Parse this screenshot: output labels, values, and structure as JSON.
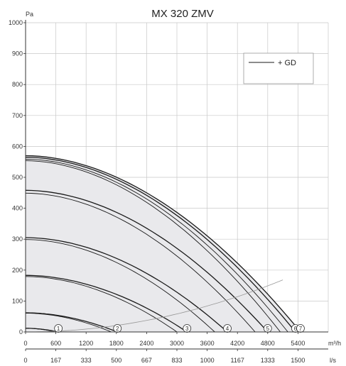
{
  "chart_data": {
    "type": "line",
    "title": "MX 320 ZMV",
    "ylabel": "Pa",
    "x_unit_primary": "m³/h",
    "x_unit_secondary": "l/s",
    "ylim": [
      0,
      1000
    ],
    "xlim": [
      0,
      6000
    ],
    "y_ticks": [
      "0",
      "100",
      "200",
      "300",
      "400",
      "500",
      "600",
      "700",
      "800",
      "900",
      "1000"
    ],
    "x_ticks": [
      "0",
      "600",
      "1200",
      "1800",
      "2400",
      "3000",
      "3600",
      "4200",
      "4800",
      "5400"
    ],
    "x_ticks_secondary": [
      "0",
      "167",
      "333",
      "500",
      "667",
      "833",
      "1000",
      "1167",
      "1333",
      "1500"
    ],
    "grid": true,
    "legend": {
      "entries": [
        "+ GD"
      ],
      "placement": "top-right"
    },
    "series": [
      {
        "label": "1",
        "pressure_at_zero": 12,
        "flow_at_zero": 650,
        "gd_flow_at_zero": 600
      },
      {
        "label": "2",
        "pressure_at_zero": 62,
        "flow_at_zero": 1820,
        "gd_flow_at_zero": 1700
      },
      {
        "label": "3",
        "pressure_at_zero": 183,
        "flow_at_zero": 3200,
        "gd_flow_at_zero": 3000
      },
      {
        "label": "4",
        "pressure_at_zero": 305,
        "flow_at_zero": 4000,
        "gd_flow_at_zero": 3750
      },
      {
        "label": "5",
        "pressure_at_zero": 458,
        "flow_at_zero": 4800,
        "gd_flow_at_zero": 4550
      },
      {
        "label": "6",
        "pressure_at_zero": 565,
        "flow_at_zero": 5350,
        "gd_flow_at_zero": 5050
      },
      {
        "label": "7",
        "pressure_at_zero": 570,
        "flow_at_zero": 5450,
        "gd_flow_at_zero": 5200
      }
    ],
    "system_curve": {
      "k": 6.47e-06,
      "x_max": 5100
    }
  },
  "colors": {
    "background": "#ffffff",
    "envelope_fill": "#e9e9ec",
    "grid": "#c8c8c8",
    "curve": "#1a1a1a",
    "system_curve": "#999999"
  }
}
